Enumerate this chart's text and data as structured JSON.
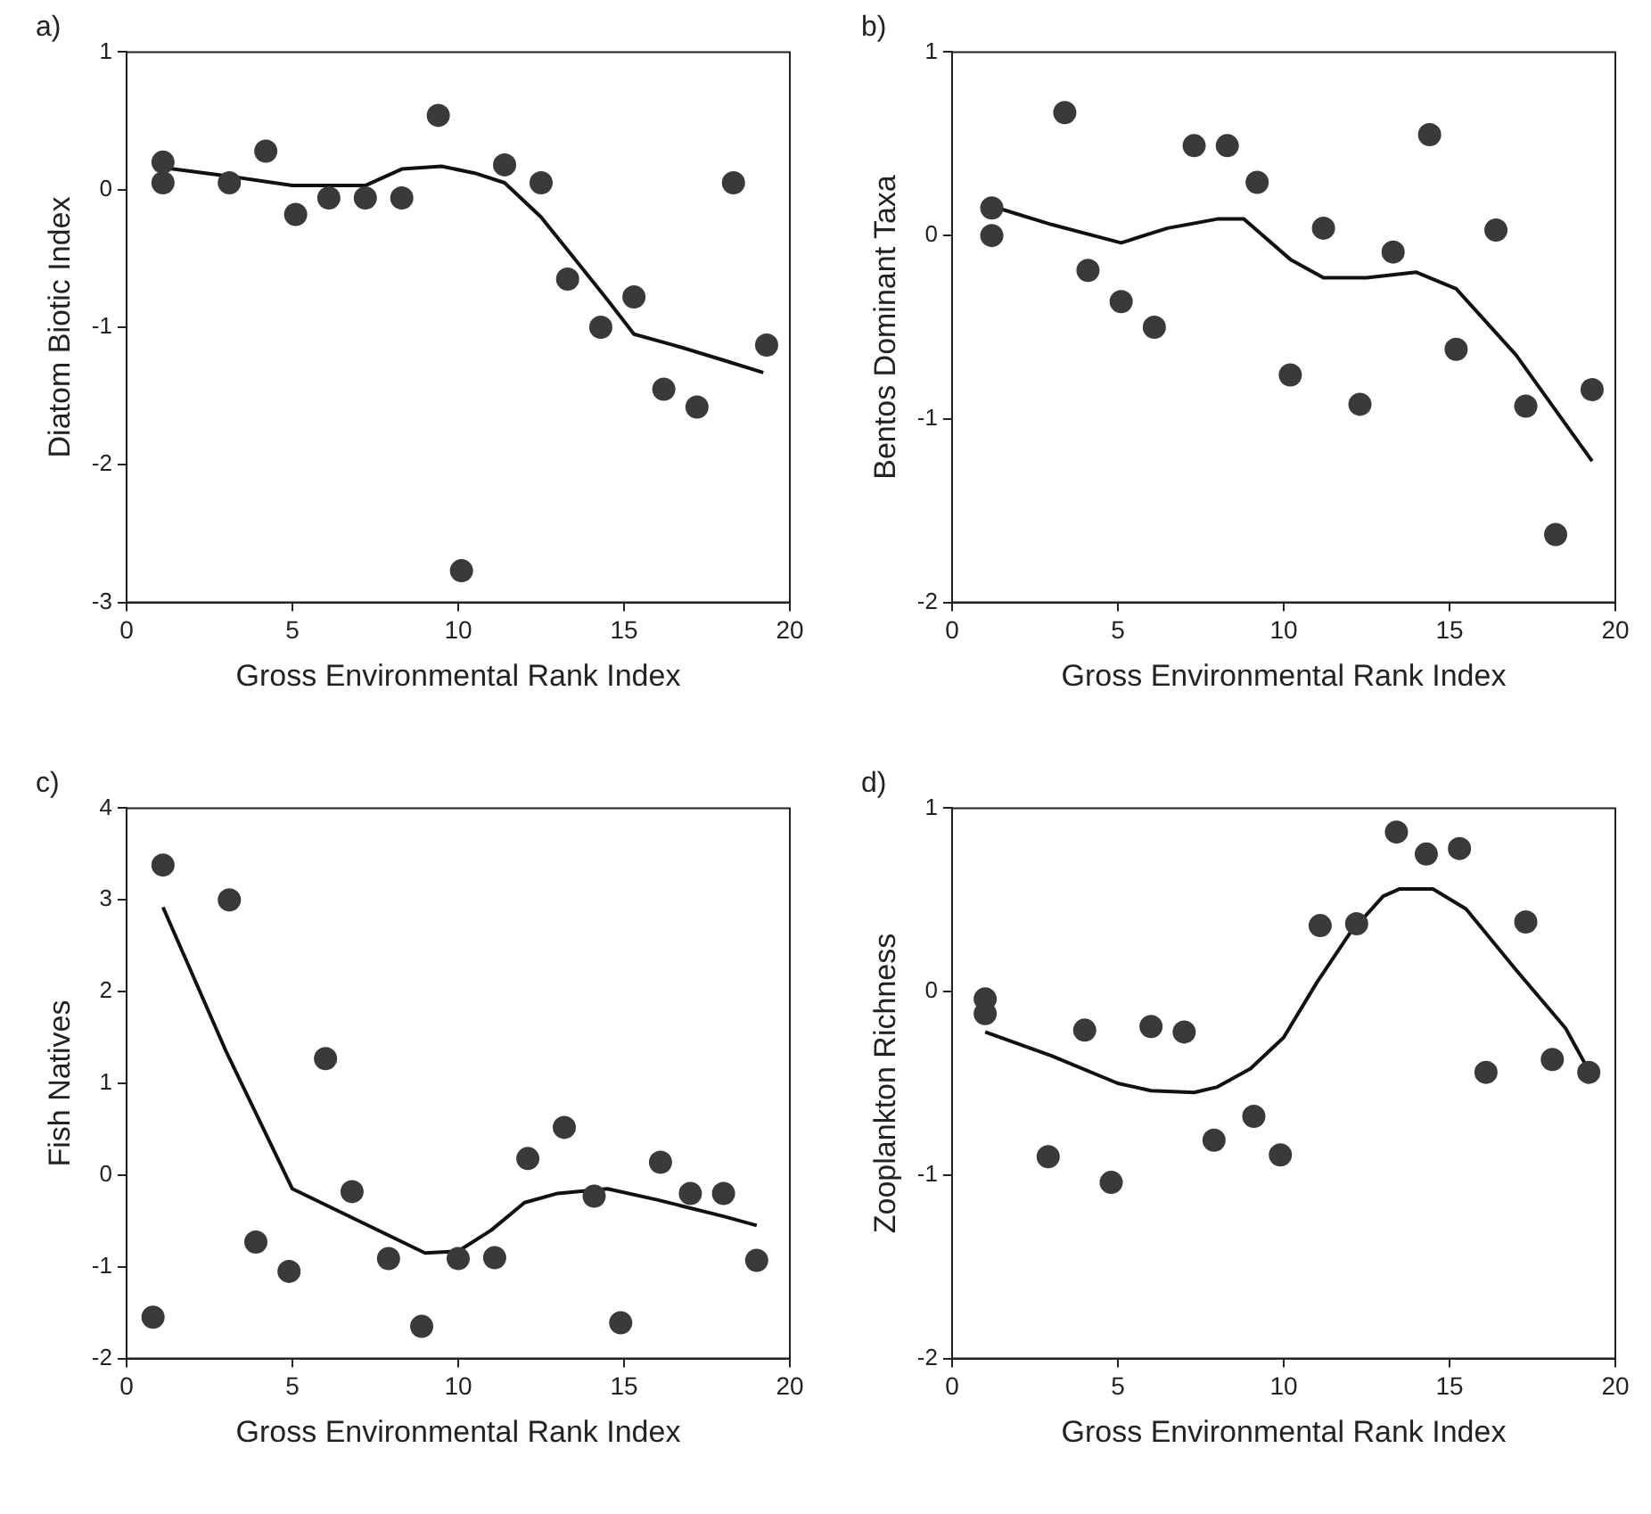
{
  "chart_data": [
    {
      "type": "scatter",
      "title": "a)",
      "xlabel": "Gross Environmental Rank Index",
      "ylabel": "Diatom Biotic Index",
      "xlim": [
        0,
        20
      ],
      "xticks": [
        0,
        5,
        10,
        15,
        20
      ],
      "ylim": [
        -3,
        1
      ],
      "yticks": [
        -3,
        -2,
        -1,
        0,
        1
      ],
      "grid": false,
      "legend": false,
      "series": [
        {
          "marker": "circle",
          "color": "#3a3a3a",
          "x": [
            1.1,
            1.1,
            3.1,
            4.2,
            5.1,
            6.1,
            7.2,
            8.3,
            9.4,
            10.1,
            11.4,
            12.5,
            13.3,
            14.3,
            15.3,
            16.2,
            17.2,
            18.3,
            19.3
          ],
          "values": [
            0.2,
            0.05,
            0.05,
            0.28,
            -0.18,
            -0.06,
            -0.06,
            -0.06,
            0.54,
            -2.77,
            0.18,
            0.05,
            -0.65,
            -1.0,
            -0.78,
            -1.45,
            -1.58,
            0.05,
            -1.13
          ]
        },
        {
          "type": "line",
          "marker": "none",
          "color": "#111111",
          "x": [
            1.1,
            3,
            5,
            7.2,
            8.3,
            9.5,
            10.5,
            11.4,
            12.5,
            13.5,
            14.5,
            15.3,
            16.5,
            18,
            19.2
          ],
          "values": [
            0.16,
            0.1,
            0.03,
            0.03,
            0.15,
            0.17,
            0.12,
            0.05,
            -0.2,
            -0.5,
            -0.8,
            -1.05,
            -1.13,
            -1.24,
            -1.33
          ]
        }
      ]
    },
    {
      "type": "scatter",
      "title": "b)",
      "xlabel": "Gross Environmental Rank Index",
      "ylabel": "Bentos Dominant Taxa",
      "xlim": [
        0,
        20
      ],
      "xticks": [
        0,
        5,
        10,
        15,
        20
      ],
      "ylim": [
        -2,
        1
      ],
      "yticks": [
        -2,
        -1,
        0,
        1
      ],
      "grid": false,
      "legend": false,
      "series": [
        {
          "marker": "circle",
          "color": "#3a3a3a",
          "x": [
            1.2,
            1.2,
            3.4,
            4.1,
            5.1,
            6.1,
            7.3,
            8.3,
            9.2,
            10.2,
            11.2,
            12.3,
            13.3,
            14.4,
            15.2,
            16.4,
            17.3,
            18.2,
            19.3
          ],
          "values": [
            0.15,
            0.0,
            0.67,
            -0.19,
            -0.36,
            -0.5,
            0.49,
            0.49,
            0.29,
            -0.76,
            0.04,
            -0.92,
            -0.09,
            0.55,
            -0.62,
            0.03,
            -0.93,
            -1.63,
            -0.84
          ]
        },
        {
          "type": "line",
          "marker": "none",
          "color": "#111111",
          "x": [
            1.2,
            3,
            5.1,
            6.5,
            8,
            8.8,
            10.2,
            11.2,
            12.5,
            14,
            15.2,
            17,
            19.3
          ],
          "values": [
            0.16,
            0.06,
            -0.04,
            0.04,
            0.09,
            0.09,
            -0.13,
            -0.23,
            -0.23,
            -0.2,
            -0.29,
            -0.65,
            -1.23
          ]
        }
      ]
    },
    {
      "type": "scatter",
      "title": "c)",
      "xlabel": "Gross Environmental Rank Index",
      "ylabel": "Fish Natives",
      "xlim": [
        0,
        20
      ],
      "xticks": [
        0,
        5,
        10,
        15,
        20
      ],
      "ylim": [
        -2,
        4
      ],
      "yticks": [
        -2,
        -1,
        0,
        1,
        2,
        3,
        4
      ],
      "grid": false,
      "legend": false,
      "series": [
        {
          "marker": "circle",
          "color": "#3a3a3a",
          "x": [
            0.8,
            1.1,
            3.1,
            3.9,
            4.9,
            6.0,
            6.8,
            7.9,
            8.9,
            10.0,
            11.1,
            12.1,
            13.2,
            14.1,
            14.9,
            16.1,
            17.0,
            18.0,
            19.0
          ],
          "values": [
            -1.55,
            3.38,
            3.0,
            -0.73,
            -1.05,
            1.27,
            -0.18,
            -0.91,
            -1.65,
            -0.91,
            -0.9,
            0.18,
            0.52,
            -0.23,
            -1.61,
            0.14,
            -0.2,
            -0.2,
            -0.93
          ]
        },
        {
          "type": "line",
          "marker": "none",
          "color": "#111111",
          "x": [
            1.1,
            3,
            5,
            7,
            9,
            10,
            11,
            12,
            13,
            14.5,
            16,
            18,
            19
          ],
          "values": [
            2.92,
            1.35,
            -0.15,
            -0.5,
            -0.85,
            -0.83,
            -0.6,
            -0.3,
            -0.2,
            -0.15,
            -0.27,
            -0.45,
            -0.55
          ]
        }
      ]
    },
    {
      "type": "scatter",
      "title": "d)",
      "xlabel": "Gross Environmental Rank Index",
      "ylabel": "Zooplankton Richness",
      "xlim": [
        0,
        20
      ],
      "xticks": [
        0,
        5,
        10,
        15,
        20
      ],
      "ylim": [
        -2,
        1
      ],
      "yticks": [
        -2,
        -1,
        0,
        1
      ],
      "grid": false,
      "legend": false,
      "series": [
        {
          "marker": "circle",
          "color": "#3a3a3a",
          "x": [
            1.0,
            1.0,
            2.9,
            4.0,
            4.8,
            6.0,
            7.0,
            7.9,
            9.1,
            9.9,
            11.1,
            12.2,
            13.4,
            14.3,
            15.3,
            16.1,
            17.3,
            18.1,
            19.2
          ],
          "values": [
            -0.04,
            -0.12,
            -0.9,
            -0.21,
            -1.04,
            -0.19,
            -0.22,
            -0.81,
            -0.68,
            -0.89,
            0.36,
            0.37,
            0.87,
            0.75,
            0.78,
            -0.44,
            0.38,
            -0.37,
            -0.44
          ]
        },
        {
          "type": "line",
          "marker": "none",
          "color": "#111111",
          "x": [
            1,
            3,
            5,
            6,
            7.3,
            8,
            9,
            10,
            11,
            12,
            13,
            13.5,
            14.5,
            15.5,
            17,
            18.5,
            19.2
          ],
          "values": [
            -0.22,
            -0.35,
            -0.5,
            -0.54,
            -0.55,
            -0.52,
            -0.42,
            -0.25,
            0.05,
            0.32,
            0.52,
            0.56,
            0.56,
            0.45,
            0.12,
            -0.2,
            -0.43
          ]
        }
      ]
    }
  ]
}
